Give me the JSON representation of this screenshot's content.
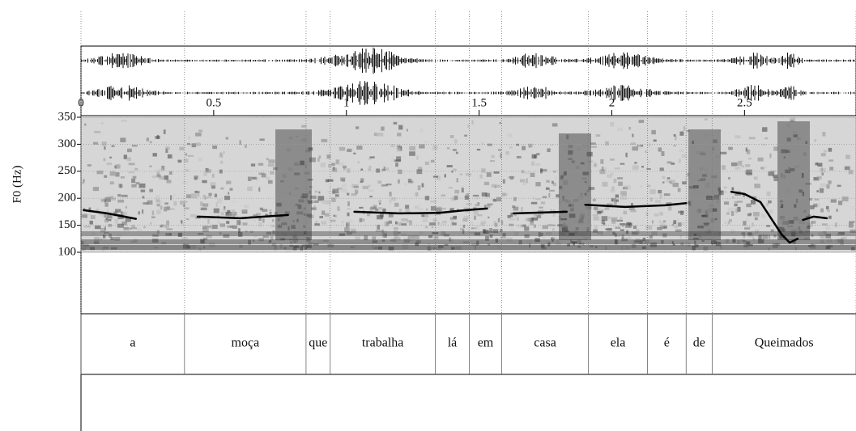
{
  "chart_data": {
    "type": "line",
    "y_label": "F0 (Hz)",
    "xlim": [
      0,
      2.92
    ],
    "xticks": [
      0,
      0.5,
      1,
      1.5,
      2,
      2.5
    ],
    "ylim": [
      100,
      350
    ],
    "yticks": [
      100,
      150,
      200,
      250,
      300,
      350
    ],
    "color": "#000000",
    "x": [
      0.01,
      0.1,
      0.207,
      null,
      0.44,
      0.6,
      0.78,
      null,
      1.03,
      1.2,
      1.35,
      1.45,
      1.53,
      null,
      1.63,
      1.83,
      null,
      1.9,
      2.05,
      2.2,
      2.28,
      null,
      2.45,
      2.5,
      2.56,
      2.6,
      2.64,
      2.67,
      2.7,
      null,
      2.72,
      2.76,
      2.81
    ],
    "values": [
      178,
      172,
      162,
      null,
      166,
      163,
      169,
      null,
      175,
      172,
      173,
      178,
      181,
      null,
      172,
      175,
      null,
      188,
      184,
      187,
      191,
      null,
      212,
      208,
      193,
      163,
      133,
      118,
      125,
      null,
      160,
      166,
      163
    ],
    "tier": {
      "labels": [
        "a",
        "moça",
        "que",
        "trabalha",
        "lá",
        "em",
        "casa",
        "ela",
        "é",
        "de",
        "Queimados"
      ],
      "boundaries": [
        0,
        0.39,
        0.848,
        0.939,
        1.335,
        1.463,
        1.585,
        1.912,
        2.134,
        2.28,
        2.378,
        2.92
      ]
    }
  }
}
